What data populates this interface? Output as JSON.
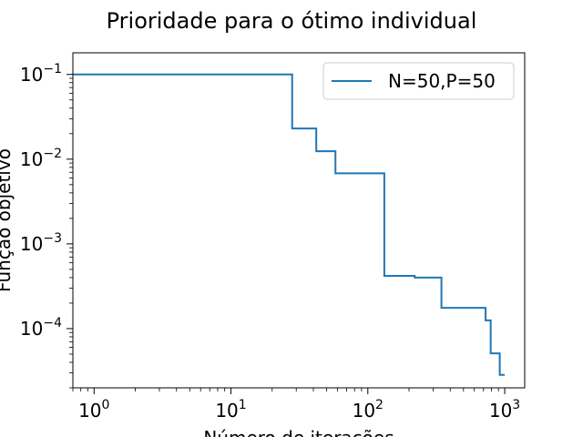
{
  "chart_data": {
    "type": "line",
    "title": "Prioridade para o ótimo individual",
    "xlabel": "Número de iterações",
    "ylabel": "Função objetivo",
    "xscale": "log",
    "yscale": "log",
    "xlim": [
      0.7,
      1400
    ],
    "ylim": [
      2e-05,
      0.18
    ],
    "grid": false,
    "legend_position": "top-right",
    "x_ticks": [
      {
        "value": 1,
        "base": "10",
        "exp": "0"
      },
      {
        "value": 10,
        "base": "10",
        "exp": "1"
      },
      {
        "value": 100,
        "base": "10",
        "exp": "2"
      },
      {
        "value": 1000,
        "base": "10",
        "exp": "3"
      }
    ],
    "y_ticks": [
      {
        "value": 0.1,
        "base": "10",
        "exp": "−1"
      },
      {
        "value": 0.01,
        "base": "10",
        "exp": "−2"
      },
      {
        "value": 0.001,
        "base": "10",
        "exp": "−3"
      },
      {
        "value": 0.0001,
        "base": "10",
        "exp": "−4"
      }
    ],
    "series": [
      {
        "name": "N=50,P=50",
        "color": "#1f77b4",
        "step": "post",
        "points": [
          [
            0.7,
            0.1
          ],
          [
            28,
            0.1
          ],
          [
            28,
            0.023
          ],
          [
            42,
            0.023
          ],
          [
            42,
            0.0124
          ],
          [
            58,
            0.0124
          ],
          [
            58,
            0.0068
          ],
          [
            132,
            0.0068
          ],
          [
            132,
            0.00042
          ],
          [
            220,
            0.00042
          ],
          [
            220,
            0.0004
          ],
          [
            345,
            0.0004
          ],
          [
            345,
            0.000176
          ],
          [
            725,
            0.000176
          ],
          [
            725,
            0.000125
          ],
          [
            790,
            0.000125
          ],
          [
            790,
            5.1e-05
          ],
          [
            920,
            5.1e-05
          ],
          [
            920,
            2.85e-05
          ],
          [
            1000,
            2.85e-05
          ]
        ]
      }
    ]
  }
}
